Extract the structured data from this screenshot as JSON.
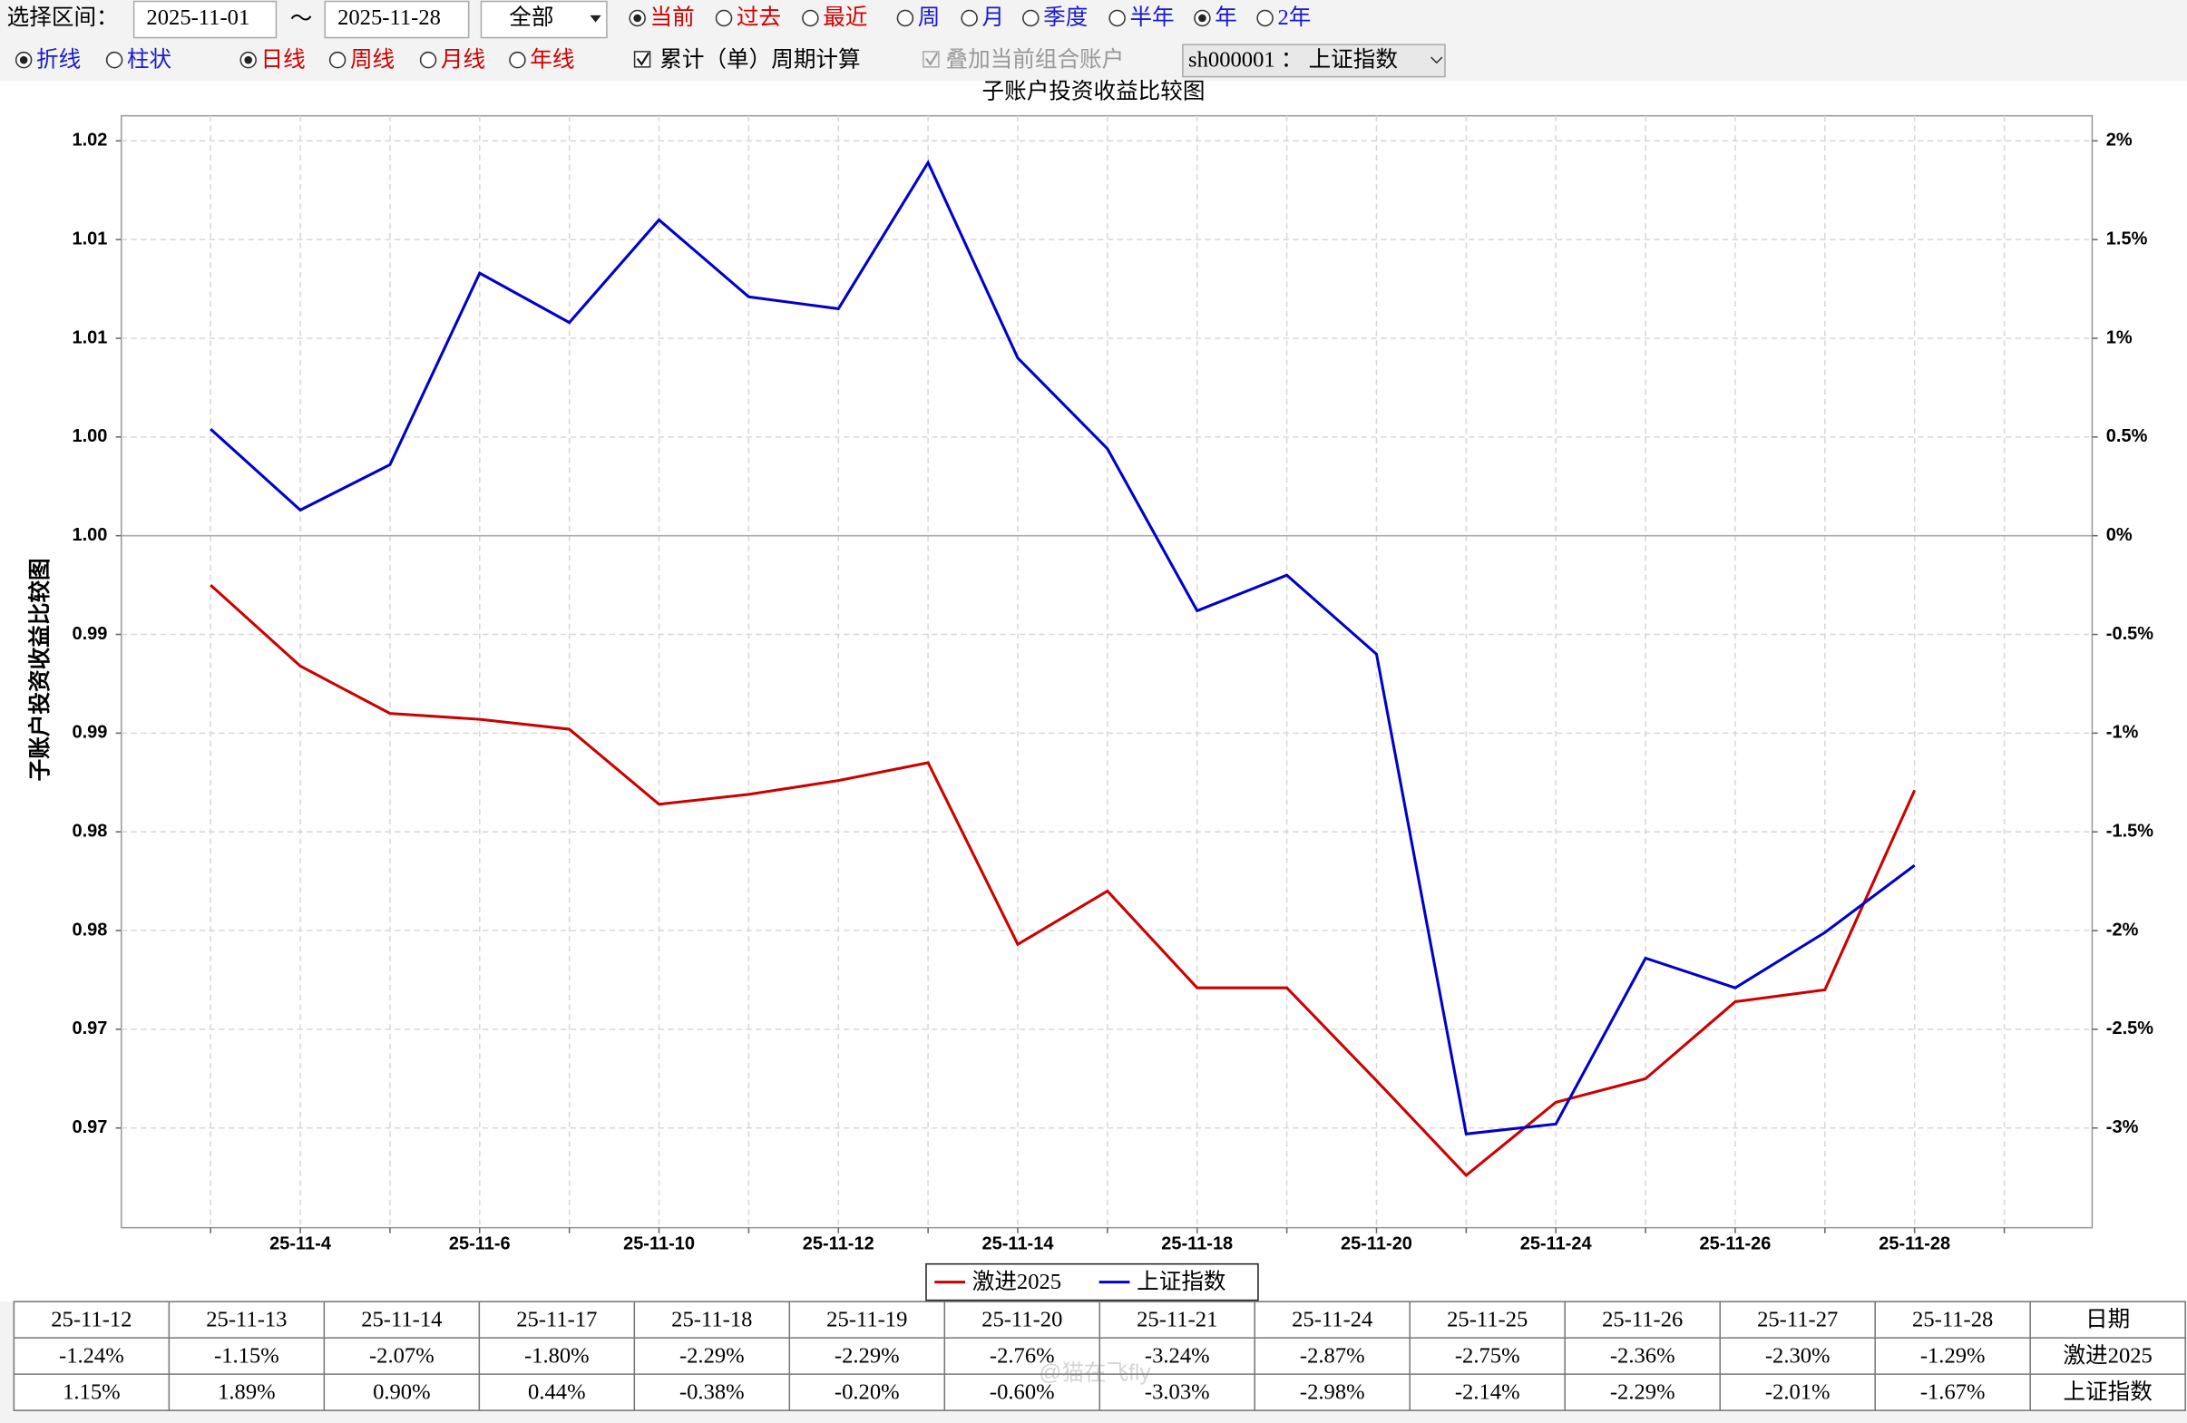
{
  "toolbar": {
    "range_label": "选择区间：",
    "start_date": "2025-11-01",
    "separator": "～",
    "end_date": "2025-11-28",
    "scope_select": "全部",
    "period_options": [
      {
        "label": "当前",
        "checked": true,
        "color": "#d00000"
      },
      {
        "label": "过去",
        "checked": false,
        "color": "#d00000"
      },
      {
        "label": "最近",
        "checked": false,
        "color": "#d00000"
      },
      {
        "label": "周",
        "checked": false,
        "color": "#1a1acc"
      },
      {
        "label": "月",
        "checked": false,
        "color": "#1a1acc"
      },
      {
        "label": "季度",
        "checked": false,
        "color": "#1a1acc"
      },
      {
        "label": "半年",
        "checked": false,
        "color": "#1a1acc"
      },
      {
        "label": "年",
        "checked": true,
        "color": "#1a1acc"
      },
      {
        "label": "2年",
        "checked": false,
        "color": "#1a1acc"
      }
    ]
  },
  "options_row": {
    "chart_styles": [
      {
        "label": "折线",
        "checked": true,
        "color": "#1a1acc"
      },
      {
        "label": "柱状",
        "checked": false,
        "color": "#1a1acc"
      }
    ],
    "frequencies": [
      {
        "label": "日线",
        "checked": true,
        "color": "#d00000"
      },
      {
        "label": "周线",
        "checked": false,
        "color": "#d00000"
      },
      {
        "label": "月线",
        "checked": false,
        "color": "#d00000"
      },
      {
        "label": "年线",
        "checked": false,
        "color": "#d00000"
      }
    ],
    "cumulative_checkbox": {
      "label": "累计（单）周期计算",
      "checked": true,
      "disabled": false
    },
    "overlay_checkbox": {
      "label": "叠加当前组合账户",
      "checked": true,
      "disabled": true
    },
    "index_select": "sh000001 ： 上证指数"
  },
  "chart_data": {
    "type": "line",
    "title": "子账户投资收益比较图",
    "y_label": "子账户投资收益比较图",
    "categories": [
      null,
      "25-11-4",
      null,
      "25-11-6",
      null,
      "25-11-10",
      null,
      "25-11-12",
      null,
      "25-11-14",
      null,
      "25-11-18",
      null,
      "25-11-20",
      null,
      "25-11-24",
      null,
      "25-11-26",
      null,
      "25-11-28"
    ],
    "series": [
      {
        "name": "激进2025",
        "color": "#cc0000",
        "axis": "y2",
        "values": [
          -0.25,
          -0.66,
          -0.9,
          -0.93,
          -0.98,
          -1.36,
          -1.31,
          -1.24,
          -1.15,
          -2.07,
          -1.8,
          -2.29,
          -2.29,
          -2.76,
          -3.24,
          -2.87,
          -2.75,
          -2.36,
          -2.3,
          -1.29
        ]
      },
      {
        "name": "上证指数",
        "color": "#0000cc",
        "axis": "y2",
        "values": [
          0.54,
          0.13,
          0.36,
          1.33,
          1.08,
          1.6,
          1.21,
          1.15,
          1.89,
          0.9,
          0.44,
          -0.38,
          -0.2,
          -0.6,
          -3.03,
          -2.98,
          -2.14,
          -2.29,
          -2.01,
          -1.67
        ]
      }
    ],
    "ylim": [
      0.96495,
      1.02127
    ],
    "yticks": [
      1.02,
      {
        "value": 1.015,
        "label": "1.01"
      },
      1.01,
      {
        "value": 1.005,
        "label": "1.00"
      },
      {
        "value": 1.0,
        "label": "1.00"
      },
      {
        "value": 0.995,
        "label": "0.99"
      },
      0.99,
      {
        "value": 0.985,
        "label": "0.98"
      },
      0.98,
      {
        "value": 0.975,
        "label": "0.97"
      },
      0.97
    ],
    "y2lim": [
      -3.505,
      2.127
    ],
    "y2ticks": [
      {
        "value": 2,
        "label": "2%"
      },
      {
        "value": 1.5,
        "label": "1.5%"
      },
      {
        "value": 1,
        "label": "1%"
      },
      {
        "value": 0.5,
        "label": "0.5%"
      },
      {
        "value": 0,
        "label": "0%"
      },
      {
        "value": -0.5,
        "label": "-0.5%"
      },
      {
        "value": -1,
        "label": "-1%"
      },
      {
        "value": -1.5,
        "label": "-1.5%"
      },
      {
        "value": -2,
        "label": "-2%"
      },
      {
        "value": -2.5,
        "label": "-2.5%"
      },
      {
        "value": -3,
        "label": "-3%"
      }
    ],
    "grid": true,
    "legend": "bottom"
  },
  "table": {
    "header_label": "日期",
    "dates": [
      "25-11-12",
      "25-11-13",
      "25-11-14",
      "25-11-17",
      "25-11-18",
      "25-11-19",
      "25-11-20",
      "25-11-21",
      "25-11-24",
      "25-11-25",
      "25-11-26",
      "25-11-27",
      "25-11-28"
    ],
    "rows": [
      {
        "name": "激进2025",
        "values": [
          "-1.24%",
          "-1.15%",
          "-2.07%",
          "-1.80%",
          "-2.29%",
          "-2.29%",
          "-2.76%",
          "-3.24%",
          "-2.87%",
          "-2.75%",
          "-2.36%",
          "-2.30%",
          "-1.29%"
        ]
      },
      {
        "name": "上证指数",
        "values": [
          "1.15%",
          "1.89%",
          "0.90%",
          "0.44%",
          "-0.38%",
          "-0.20%",
          "-0.60%",
          "-3.03%",
          "-2.98%",
          "-2.14%",
          "-2.29%",
          "-2.01%",
          "-1.67%"
        ]
      }
    ]
  },
  "watermark": "@猫在飞fly"
}
